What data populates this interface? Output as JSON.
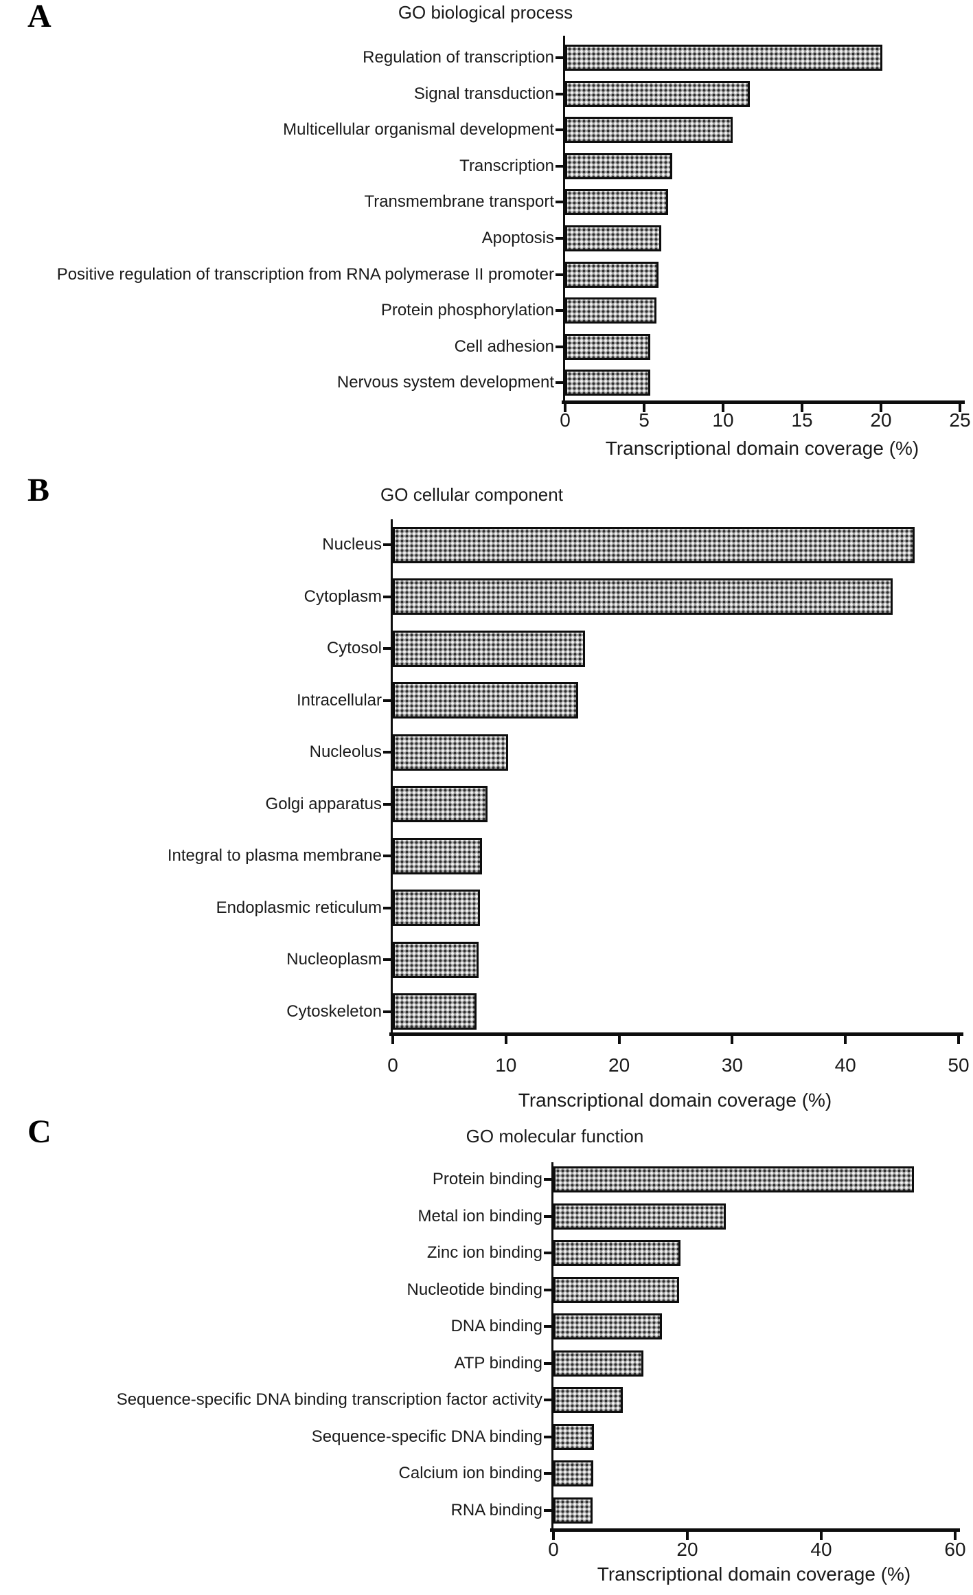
{
  "figure_background": "#ffffff",
  "bar_fill_color": "#a9a9a9",
  "bar_border_color": "#0d0d0d",
  "axis_color": "#0d0d0d",
  "text_color": "#1a1a1a",
  "chart_data": [
    {
      "type": "bar",
      "orientation": "horizontal",
      "panel": "A",
      "title": "GO biological process",
      "xlabel": "Transcriptional domain coverage (%)",
      "xlim": [
        0,
        25
      ],
      "xticks": [
        0,
        5,
        10,
        15,
        20,
        25
      ],
      "grid": false,
      "legend": "none",
      "categories": [
        "Regulation of transcription",
        "Signal transduction",
        "Multicellular organismal development",
        "Transcription",
        "Transmembrane transport",
        "Apoptosis",
        "Positive regulation of transcription from RNA polymerase II promoter",
        "Protein phosphorylation",
        "Cell adhesion",
        "Nervous system development"
      ],
      "values": [
        20.1,
        11.7,
        10.6,
        6.8,
        6.5,
        6.1,
        5.9,
        5.8,
        5.4,
        5.4
      ]
    },
    {
      "type": "bar",
      "orientation": "horizontal",
      "panel": "B",
      "title": "GO cellular component",
      "xlabel": "Transcriptional domain coverage (%)",
      "xlim": [
        0,
        50
      ],
      "xticks": [
        0,
        10,
        20,
        30,
        40,
        50
      ],
      "grid": false,
      "legend": "none",
      "categories": [
        "Nucleus",
        "Cytoplasm",
        "Cytosol",
        "Intracellular",
        "Nucleolus",
        "Golgi apparatus",
        "Integral to plasma membrane",
        "Endoplasmic reticulum",
        "Nucleoplasm",
        "Cytoskeleton"
      ],
      "values": [
        46.1,
        44.2,
        17.0,
        16.4,
        10.2,
        8.4,
        7.9,
        7.7,
        7.6,
        7.4
      ]
    },
    {
      "type": "bar",
      "orientation": "horizontal",
      "panel": "C",
      "title": "GO molecular function",
      "xlabel": "Transcriptional domain coverage (%)",
      "xlim": [
        0,
        60
      ],
      "xticks": [
        0,
        20,
        40,
        60
      ],
      "grid": false,
      "legend": "none",
      "categories": [
        "Protein binding",
        "Metal ion binding",
        "Zinc ion binding",
        "Nucleotide binding",
        "DNA binding",
        "ATP binding",
        "Sequence-specific DNA binding transcription factor activity",
        "Sequence-specific DNA binding",
        "Calcium ion binding",
        "RNA binding"
      ],
      "values": [
        53.8,
        25.7,
        19.0,
        18.8,
        16.2,
        13.4,
        10.4,
        6.1,
        5.9,
        5.8
      ]
    }
  ]
}
